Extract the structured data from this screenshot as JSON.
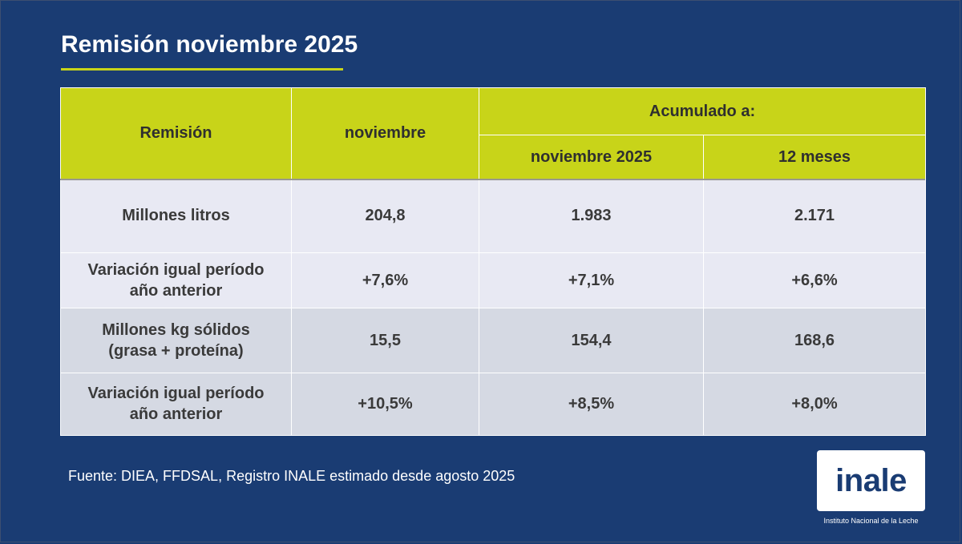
{
  "title": "Remisión noviembre 2025",
  "colors": {
    "background": "#1a3c73",
    "accent": "#c8d419",
    "row_light": "#e8e9f3",
    "row_dark": "#d5d9e3"
  },
  "table": {
    "headers": {
      "col1": "Remisión",
      "col2": "noviembre",
      "group": "Acumulado a:",
      "col3": "noviembre 2025",
      "col4": "12 meses"
    },
    "rows": [
      {
        "label": "Millones litros",
        "noviembre": "204,8",
        "acum_nov_2025": "1.983",
        "doce_meses": "2.171"
      },
      {
        "label_line1": "Variación igual período",
        "label_line2": "año anterior",
        "noviembre": "+7,6%",
        "acum_nov_2025": "+7,1%",
        "doce_meses": "+6,6%"
      },
      {
        "label_line1": "Millones kg sólidos",
        "label_line2": "(grasa + proteína)",
        "noviembre": "15,5",
        "acum_nov_2025": "154,4",
        "doce_meses": "168,6"
      },
      {
        "label_line1": "Variación igual período",
        "label_line2": "año anterior",
        "noviembre": "+10,5%",
        "acum_nov_2025": "+8,5%",
        "doce_meses": "+8,0%"
      }
    ]
  },
  "footnote": "Fuente: DIEA, FFDSAL, Registro INALE estimado desde agosto 2025",
  "logo": {
    "text": "inale",
    "subtitle": "Instituto Nacional de la Leche"
  }
}
